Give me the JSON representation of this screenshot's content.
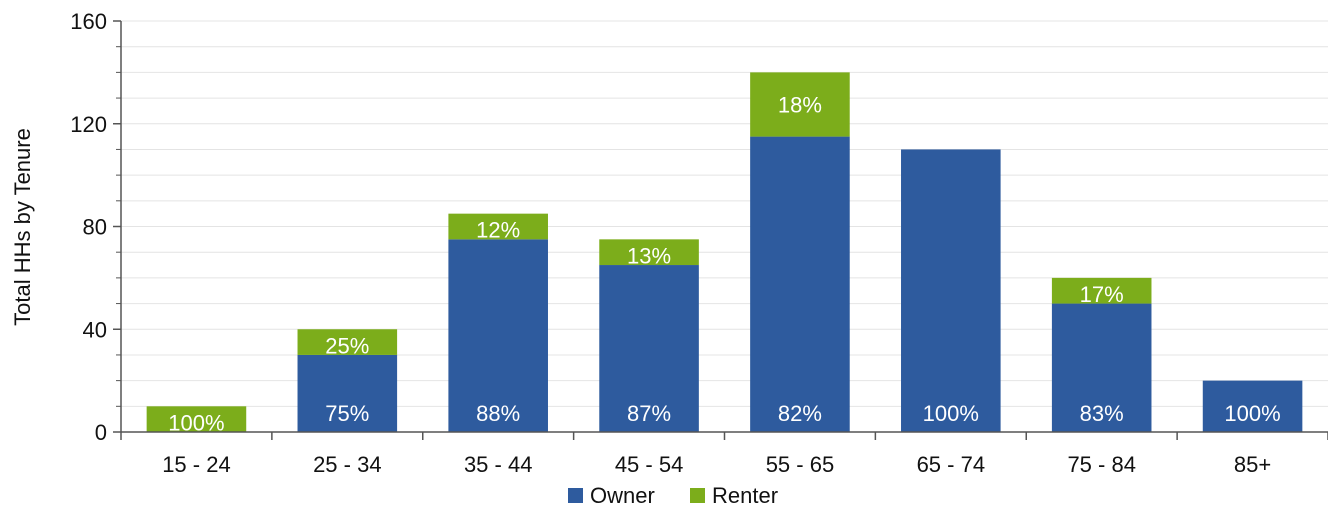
{
  "chart_data": {
    "type": "bar",
    "stacked": true,
    "categories": [
      "15 - 24",
      "25 - 34",
      "35 - 44",
      "45 - 54",
      "55 - 65",
      "65 - 74",
      "75 - 84",
      "85+"
    ],
    "series": [
      {
        "name": "Owner",
        "color": "#2e5b9e",
        "values": [
          0,
          30,
          75,
          65,
          115,
          110,
          50,
          20
        ],
        "labels": [
          "",
          "75%",
          "88%",
          "87%",
          "82%",
          "100%",
          "83%",
          "100%"
        ]
      },
      {
        "name": "Renter",
        "color": "#7cad1b",
        "values": [
          10,
          10,
          10,
          10,
          25,
          0,
          10,
          0
        ],
        "labels": [
          "100%",
          "25%",
          "12%",
          "13%",
          "18%",
          "",
          "17%",
          ""
        ]
      }
    ],
    "ylabel": "Total HHs by Tenure",
    "xlabel": "",
    "ylim": [
      0,
      160
    ],
    "yticks": [
      0,
      40,
      80,
      120,
      160
    ],
    "grid": true,
    "legend": "bottom-center"
  }
}
